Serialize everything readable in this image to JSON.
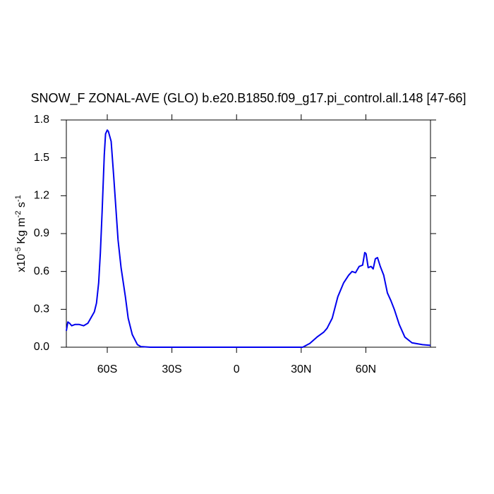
{
  "chart_data": {
    "type": "line",
    "title": "SNOW_F ZONAL-AVE (GLO) b.e20.B1850.f09_g17.pi_control.all.148 [47-66]",
    "ylabel_parts": [
      "x10",
      "-5",
      " Kg m",
      "-2",
      " s",
      "-1"
    ],
    "xlim": [
      -79,
      90
    ],
    "ylim": [
      0,
      1.8
    ],
    "xticks": [
      {
        "value": -60,
        "label": "60S"
      },
      {
        "value": -30,
        "label": "30S"
      },
      0,
      {
        "value": 30,
        "label": "30N"
      },
      {
        "value": 60,
        "label": "60N"
      }
    ],
    "yticks": [
      {
        "value": 0,
        "label": "0.0"
      },
      0.3,
      0.6,
      0.9,
      1.2,
      1.5,
      1.8
    ],
    "series": [
      {
        "color": "#0000ee",
        "x": [
          -79,
          -78.3,
          -77.5,
          -76.5,
          -75,
          -73,
          -71,
          -69,
          -67,
          -66,
          -65,
          -64,
          -63.2,
          -62.4,
          -61.4,
          -60.8,
          -60,
          -59.5,
          -58.2,
          -57,
          -55,
          -53.6,
          -51.6,
          -50.3,
          -48.4,
          -46,
          -44.4,
          -40,
          -20,
          0,
          20,
          30.7,
          34,
          37.3,
          40.5,
          42,
          44.4,
          47,
          49.7,
          52,
          53.6,
          55.2,
          56.9,
          58.5,
          59.5,
          60.1,
          61.1,
          62.4,
          63.4,
          64.4,
          65.4,
          66.7,
          68.3,
          70,
          71.6,
          73.2,
          75.5,
          78.1,
          81.4,
          86.3,
          90
        ],
        "values": [
          0.13,
          0.2,
          0.19,
          0.17,
          0.18,
          0.18,
          0.17,
          0.19,
          0.25,
          0.28,
          0.35,
          0.51,
          0.75,
          1.07,
          1.52,
          1.69,
          1.72,
          1.71,
          1.63,
          1.35,
          0.85,
          0.63,
          0.4,
          0.23,
          0.1,
          0.02,
          0.005,
          0,
          0,
          0,
          0,
          0,
          0.03,
          0.08,
          0.12,
          0.15,
          0.23,
          0.4,
          0.51,
          0.57,
          0.6,
          0.59,
          0.64,
          0.65,
          0.75,
          0.74,
          0.63,
          0.64,
          0.62,
          0.7,
          0.71,
          0.64,
          0.57,
          0.43,
          0.37,
          0.3,
          0.18,
          0.08,
          0.035,
          0.02,
          0.015
        ]
      }
    ]
  }
}
